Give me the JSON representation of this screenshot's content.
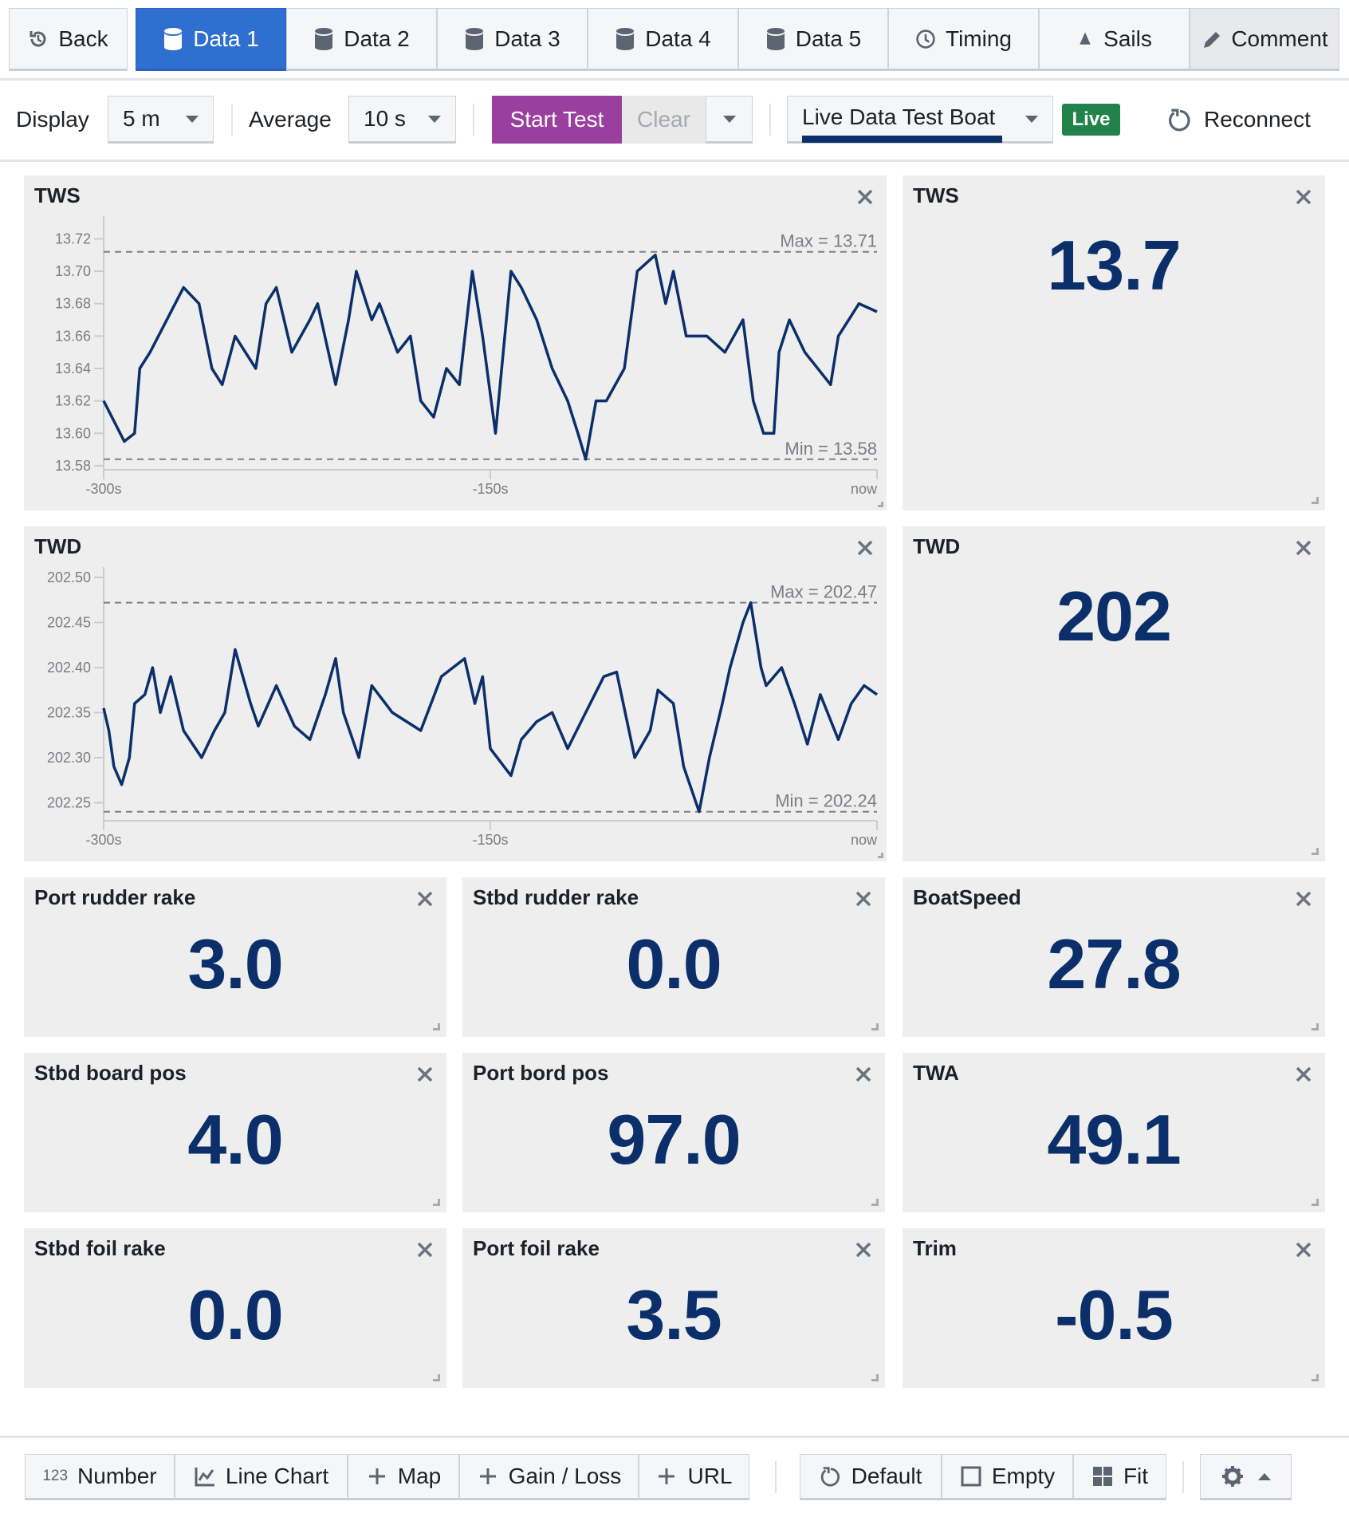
{
  "tabs": [
    {
      "label": "Back",
      "icon": "back-icon"
    },
    {
      "label": "Data 1",
      "icon": "database-icon",
      "active": true
    },
    {
      "label": "Data 2",
      "icon": "database-icon"
    },
    {
      "label": "Data 3",
      "icon": "database-icon"
    },
    {
      "label": "Data 4",
      "icon": "database-icon"
    },
    {
      "label": "Data 5",
      "icon": "database-icon"
    },
    {
      "label": "Timing",
      "icon": "clock-icon"
    },
    {
      "label": "Sails",
      "icon": "sail-icon"
    },
    {
      "label": "Comment",
      "icon": "pencil-icon"
    }
  ],
  "toolbar": {
    "display_label": "Display",
    "display_value": "5 m",
    "average_label": "Average",
    "average_value": "10 s",
    "start_test": "Start Test",
    "clear": "Clear",
    "boat": "Live Data Test Boat",
    "live_badge": "Live",
    "reconnect": "Reconnect"
  },
  "colors": {
    "active_tab": "#2f6fcf",
    "start_test": "#9b3f9e",
    "live": "#22834a",
    "value": "#0b2f6a",
    "line": "#0b2f6a"
  },
  "panels": {
    "tws_value": {
      "title": "TWS",
      "value": "13.7"
    },
    "twd_value": {
      "title": "TWD",
      "value": "202"
    },
    "grid": [
      {
        "title": "Port rudder rake",
        "value": "3.0"
      },
      {
        "title": "Stbd rudder rake",
        "value": "0.0"
      },
      {
        "title": "BoatSpeed",
        "value": "27.8"
      },
      {
        "title": "Stbd board pos",
        "value": "4.0"
      },
      {
        "title": "Port bord pos",
        "value": "97.0"
      },
      {
        "title": "TWA",
        "value": "49.1"
      },
      {
        "title": "Stbd foil rake",
        "value": "0.0"
      },
      {
        "title": "Port foil rake",
        "value": "3.5"
      },
      {
        "title": "Trim",
        "value": "-0.5"
      }
    ]
  },
  "chart_data": [
    {
      "type": "line",
      "title": "TWS",
      "xlim": [
        -300,
        0
      ],
      "ylim": [
        13.5775,
        13.734
      ],
      "yticks": [
        "13.58",
        "13.60",
        "13.62",
        "13.64",
        "13.66",
        "13.68",
        "13.70",
        "13.72"
      ],
      "xticks": [
        {
          "value": -300,
          "label": "-300s"
        },
        {
          "value": -150,
          "label": "-150s"
        },
        {
          "value": 0,
          "label": "now"
        }
      ],
      "max": 13.712,
      "max_label": "Max = 13.71",
      "min": 13.584,
      "min_label": "Min = 13.58",
      "x": [
        -300,
        -292,
        -288,
        -286,
        -282,
        -269,
        -263,
        -258,
        -254,
        -249,
        -241,
        -237,
        -233,
        -227,
        -220,
        -217,
        -210,
        -205,
        -202,
        -196,
        -193,
        -186,
        -181,
        -177,
        -172,
        -167,
        -162,
        -157,
        -153,
        -148,
        -145,
        -142,
        -138,
        -132,
        -126,
        -120,
        -116,
        -113,
        -109,
        -105,
        -98,
        -93,
        -86,
        -82,
        -79,
        -74,
        -66,
        -59,
        -52,
        -48,
        -44,
        -40,
        -38,
        -34,
        -28,
        -18,
        -15,
        -7,
        0
      ],
      "y": [
        13.62,
        13.595,
        13.6,
        13.64,
        13.65,
        13.69,
        13.68,
        13.64,
        13.63,
        13.66,
        13.64,
        13.68,
        13.69,
        13.65,
        13.67,
        13.68,
        13.63,
        13.67,
        13.7,
        13.67,
        13.68,
        13.65,
        13.66,
        13.62,
        13.61,
        13.64,
        13.63,
        13.7,
        13.66,
        13.6,
        13.65,
        13.7,
        13.69,
        13.67,
        13.64,
        13.62,
        13.6,
        13.584,
        13.62,
        13.62,
        13.64,
        13.7,
        13.71,
        13.68,
        13.7,
        13.66,
        13.66,
        13.65,
        13.67,
        13.62,
        13.6,
        13.6,
        13.65,
        13.67,
        13.65,
        13.63,
        13.66,
        13.68,
        13.675
      ]
    },
    {
      "type": "line",
      "title": "TWD",
      "xlim": [
        -300,
        0
      ],
      "ylim": [
        202.23,
        202.5115
      ],
      "yticks": [
        "202.25",
        "202.30",
        "202.35",
        "202.40",
        "202.45",
        "202.50"
      ],
      "xticks": [
        {
          "value": -300,
          "label": "-300s"
        },
        {
          "value": -150,
          "label": "-150s"
        },
        {
          "value": 0,
          "label": "now"
        }
      ],
      "max": 202.472,
      "max_label": "Max = 202.47",
      "min": 202.24,
      "min_label": "Min = 202.24",
      "x": [
        -300,
        -298,
        -296,
        -293,
        -290,
        -288,
        -284,
        -281,
        -278,
        -274,
        -269,
        -262,
        -257,
        -253,
        -249,
        -243,
        -240,
        -233,
        -226,
        -220,
        -214,
        -210,
        -207,
        -201,
        -196,
        -188,
        -177,
        -169,
        -160,
        -156,
        -153,
        -150,
        -142,
        -138,
        -132,
        -126,
        -120,
        -113,
        -106,
        -101,
        -94,
        -88,
        -85,
        -79,
        -75,
        -69,
        -65,
        -60,
        -57,
        -52,
        -49,
        -45,
        -43,
        -37,
        -32,
        -27,
        -22,
        -15,
        -10,
        -5,
        0
      ],
      "y": [
        202.355,
        202.33,
        202.29,
        202.27,
        202.3,
        202.36,
        202.37,
        202.4,
        202.35,
        202.39,
        202.33,
        202.3,
        202.33,
        202.35,
        202.42,
        202.36,
        202.335,
        202.38,
        202.335,
        202.32,
        202.37,
        202.41,
        202.35,
        202.3,
        202.38,
        202.35,
        202.33,
        202.39,
        202.41,
        202.36,
        202.39,
        202.31,
        202.28,
        202.32,
        202.34,
        202.35,
        202.31,
        202.35,
        202.39,
        202.395,
        202.3,
        202.33,
        202.375,
        202.36,
        202.29,
        202.24,
        202.3,
        202.36,
        202.4,
        202.45,
        202.472,
        202.4,
        202.38,
        202.4,
        202.36,
        202.315,
        202.37,
        202.32,
        202.36,
        202.38,
        202.37
      ]
    }
  ],
  "bottom": {
    "number": "Number",
    "number_icon_text": "123",
    "line_chart": "Line Chart",
    "map": "Map",
    "gain_loss": "Gain / Loss",
    "url": "URL",
    "default": "Default",
    "empty": "Empty",
    "fit": "Fit"
  }
}
